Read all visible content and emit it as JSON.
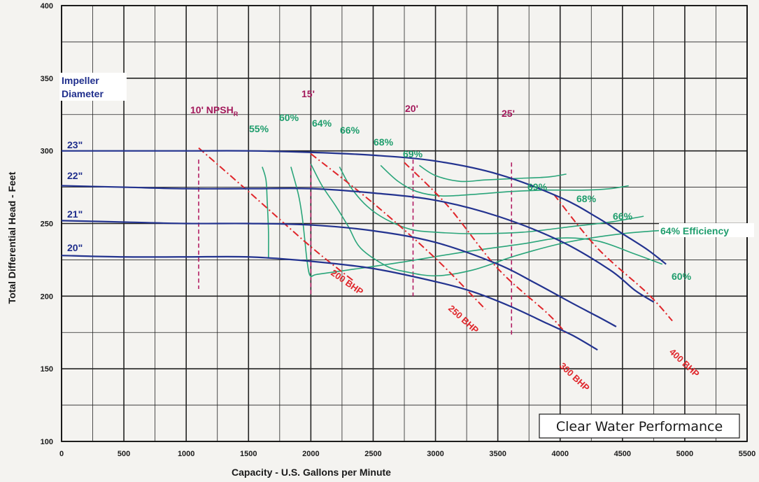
{
  "chart_data": {
    "type": "line",
    "title": "",
    "xlabel": "Capacity - U.S. Gallons per Minute",
    "ylabel": "Total Differential Head - Feet",
    "xlim": [
      0,
      5500
    ],
    "ylim": [
      100,
      400
    ],
    "grid": true,
    "x_ticks": [
      "0",
      "500",
      "1000",
      "1500",
      "2000",
      "2500",
      "3000",
      "3500",
      "4000",
      "4500",
      "5000",
      "5500"
    ],
    "y_ticks": [
      "100",
      "150",
      "200",
      "250",
      "300",
      "350",
      "400"
    ],
    "impeller_heading": [
      "Impeller",
      "Diameter"
    ],
    "impeller_curves": [
      {
        "name": "23\"",
        "points": [
          [
            0,
            300
          ],
          [
            500,
            300
          ],
          [
            1000,
            300
          ],
          [
            1500,
            300
          ],
          [
            2000,
            299
          ],
          [
            2500,
            297
          ],
          [
            3000,
            293
          ],
          [
            3500,
            284
          ],
          [
            4000,
            268
          ],
          [
            4300,
            254
          ],
          [
            4500,
            243
          ],
          [
            4700,
            232
          ],
          [
            4850,
            222
          ]
        ]
      },
      {
        "name": "22\"",
        "points": [
          [
            0,
            276
          ],
          [
            500,
            275
          ],
          [
            1000,
            274
          ],
          [
            1500,
            274
          ],
          [
            2000,
            274
          ],
          [
            2500,
            271
          ],
          [
            3000,
            266
          ],
          [
            3500,
            255
          ],
          [
            4000,
            238
          ],
          [
            4400,
            218
          ],
          [
            4600,
            204
          ],
          [
            4750,
            196
          ]
        ]
      },
      {
        "name": "21\"",
        "points": [
          [
            0,
            252
          ],
          [
            500,
            251
          ],
          [
            1000,
            250
          ],
          [
            1500,
            250
          ],
          [
            2000,
            249
          ],
          [
            2500,
            245
          ],
          [
            3000,
            237
          ],
          [
            3500,
            222
          ],
          [
            3800,
            209
          ],
          [
            4100,
            195
          ],
          [
            4300,
            186
          ],
          [
            4450,
            179
          ]
        ]
      },
      {
        "name": "20\"",
        "points": [
          [
            0,
            228
          ],
          [
            500,
            227
          ],
          [
            1000,
            227
          ],
          [
            1500,
            227
          ],
          [
            2000,
            224
          ],
          [
            2500,
            219
          ],
          [
            3000,
            210
          ],
          [
            3300,
            203
          ],
          [
            3600,
            193
          ],
          [
            3900,
            181
          ],
          [
            4100,
            173
          ],
          [
            4300,
            163
          ]
        ]
      }
    ],
    "efficiency_curves": [
      {
        "name": "55%",
        "points": [
          [
            1610,
            289
          ],
          [
            1640,
            280
          ],
          [
            1650,
            265
          ],
          [
            1660,
            245
          ],
          [
            1660,
            226
          ]
        ]
      },
      {
        "name": "60%",
        "points": [
          [
            1840,
            289
          ],
          [
            1900,
            270
          ],
          [
            1930,
            255
          ],
          [
            1950,
            240
          ],
          [
            1970,
            224
          ],
          [
            1995,
            214
          ],
          [
            2050,
            215
          ],
          [
            2300,
            218
          ],
          [
            2700,
            223
          ],
          [
            3200,
            230
          ],
          [
            3700,
            236
          ],
          [
            4000,
            240
          ],
          [
            4300,
            238
          ],
          [
            4600,
            229
          ],
          [
            4820,
            222
          ]
        ]
      },
      {
        "name": "64%",
        "points": [
          [
            2000,
            291
          ],
          [
            2090,
            276
          ],
          [
            2200,
            262
          ],
          [
            2300,
            248
          ],
          [
            2400,
            233
          ],
          [
            2600,
            221
          ],
          [
            2750,
            217
          ],
          [
            3000,
            214
          ],
          [
            3300,
            218
          ],
          [
            3650,
            228
          ],
          [
            4050,
            237
          ],
          [
            4500,
            243
          ],
          [
            4950,
            246
          ]
        ]
      },
      {
        "name": "66%",
        "points": [
          [
            2230,
            289
          ],
          [
            2320,
            275
          ],
          [
            2450,
            262
          ],
          [
            2600,
            253
          ],
          [
            2800,
            246
          ],
          [
            3000,
            244
          ],
          [
            3300,
            243
          ],
          [
            3700,
            244
          ],
          [
            4100,
            248
          ],
          [
            4400,
            251
          ],
          [
            4670,
            255
          ]
        ]
      },
      {
        "name": "68%",
        "points": [
          [
            2560,
            290
          ],
          [
            2700,
            279
          ],
          [
            2850,
            272
          ],
          [
            3050,
            269
          ],
          [
            3300,
            270
          ],
          [
            3600,
            272
          ],
          [
            3900,
            273
          ],
          [
            4200,
            273
          ],
          [
            4400,
            274
          ],
          [
            4550,
            276
          ]
        ]
      },
      {
        "name": "69%",
        "points": [
          [
            2870,
            290
          ],
          [
            3000,
            283
          ],
          [
            3200,
            279
          ],
          [
            3400,
            280
          ],
          [
            3650,
            281
          ],
          [
            3900,
            282
          ],
          [
            4050,
            284
          ]
        ]
      }
    ],
    "efficiency_labels": {
      "e55": "55%",
      "e60": "60%",
      "e64": "64%",
      "e66": "66%",
      "e68": "68%",
      "e69": "69%",
      "r69": "69%",
      "r68": "68%",
      "r66": "66%",
      "r64": "64% Efficiency",
      "r60": "60%"
    },
    "npshr_lines": [
      {
        "name": "10' NPSH",
        "sub": "R",
        "x": 1100,
        "y_top": 294,
        "y_bottom": 205
      },
      {
        "name": "15'",
        "x": 2000,
        "y_top": 291,
        "y_bottom": 200
      },
      {
        "name": "20'",
        "x": 2820,
        "y_top": 294,
        "y_bottom": 200
      },
      {
        "name": "25'",
        "x": 3610,
        "y_top": 292,
        "y_bottom": 173
      }
    ],
    "bhp_lines": [
      {
        "name": "200 BHP",
        "points": [
          [
            1100,
            302
          ],
          [
            1500,
            272
          ],
          [
            2000,
            234
          ],
          [
            2350,
            210
          ]
        ]
      },
      {
        "name": "250 BHP",
        "points": [
          [
            2000,
            298
          ],
          [
            2500,
            264
          ],
          [
            3000,
            226
          ],
          [
            3400,
            191
          ]
        ]
      },
      {
        "name": "300 BHP",
        "points": [
          [
            2750,
            292
          ],
          [
            3100,
            262
          ],
          [
            3500,
            219
          ],
          [
            3900,
            188
          ],
          [
            4050,
            174
          ]
        ]
      },
      {
        "name": "400 BHP",
        "points": [
          [
            3950,
            270
          ],
          [
            4300,
            233
          ],
          [
            4700,
            202
          ],
          [
            4900,
            183
          ]
        ]
      }
    ],
    "annotation_box": "Clear Water Performance"
  }
}
